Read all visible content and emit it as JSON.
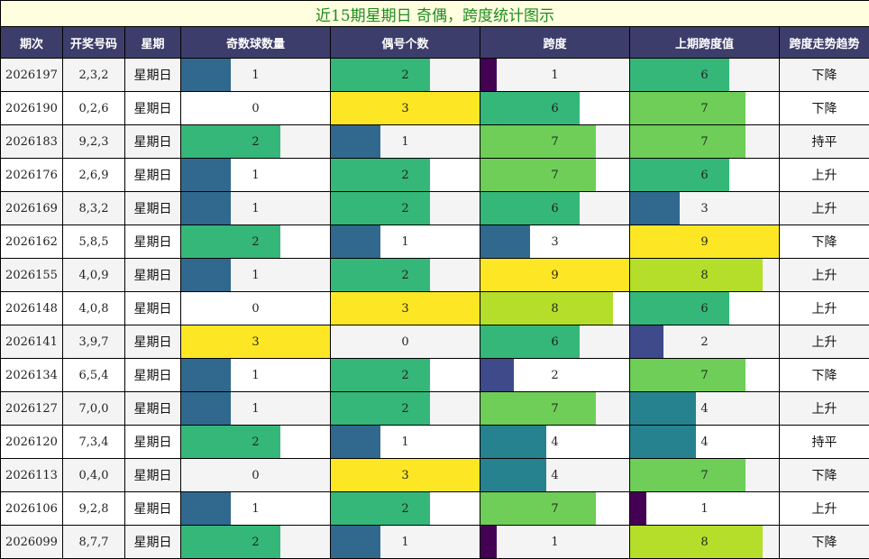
{
  "title": "近15期星期日 奇偶，跨度统计图示",
  "headers": [
    "期次",
    "开奖号码",
    "星期",
    "奇数球数量",
    "偶号个数",
    "跨度",
    "上期跨度值",
    "跨度走势趋势"
  ],
  "colors": {
    "c0": "#440154",
    "c1": "#482878",
    "c2": "#3e4a89",
    "c3": "#31688e",
    "c4": "#26828e",
    "c5": "#1f9e89",
    "c6": "#35b779",
    "c7": "#6ece58",
    "c8": "#b5de2b",
    "c9": "#fde725"
  },
  "chart_data": {
    "type": "table",
    "title": "近15期星期日 奇偶，跨度统计图示",
    "columns": [
      "期次",
      "开奖号码",
      "星期",
      "奇数球数量",
      "偶号个数",
      "跨度",
      "上期跨度值",
      "跨度走势趋势"
    ],
    "rows": [
      {
        "period": "2026197",
        "numbers": "2,3,2",
        "weekday": "星期日",
        "odd": 1,
        "even": 2,
        "span": 1,
        "prev_span": 6,
        "trend": "下降"
      },
      {
        "period": "2026190",
        "numbers": "0,2,6",
        "weekday": "星期日",
        "odd": 0,
        "even": 3,
        "span": 6,
        "prev_span": 7,
        "trend": "下降"
      },
      {
        "period": "2026183",
        "numbers": "9,2,3",
        "weekday": "星期日",
        "odd": 2,
        "even": 1,
        "span": 7,
        "prev_span": 7,
        "trend": "持平"
      },
      {
        "period": "2026176",
        "numbers": "2,6,9",
        "weekday": "星期日",
        "odd": 1,
        "even": 2,
        "span": 7,
        "prev_span": 6,
        "trend": "上升"
      },
      {
        "period": "2026169",
        "numbers": "8,3,2",
        "weekday": "星期日",
        "odd": 1,
        "even": 2,
        "span": 6,
        "prev_span": 3,
        "trend": "上升"
      },
      {
        "period": "2026162",
        "numbers": "5,8,5",
        "weekday": "星期日",
        "odd": 2,
        "even": 1,
        "span": 3,
        "prev_span": 9,
        "trend": "下降"
      },
      {
        "period": "2026155",
        "numbers": "4,0,9",
        "weekday": "星期日",
        "odd": 1,
        "even": 2,
        "span": 9,
        "prev_span": 8,
        "trend": "上升"
      },
      {
        "period": "2026148",
        "numbers": "4,0,8",
        "weekday": "星期日",
        "odd": 0,
        "even": 3,
        "span": 8,
        "prev_span": 6,
        "trend": "上升"
      },
      {
        "period": "2026141",
        "numbers": "3,9,7",
        "weekday": "星期日",
        "odd": 3,
        "even": 0,
        "span": 6,
        "prev_span": 2,
        "trend": "上升"
      },
      {
        "period": "2026134",
        "numbers": "6,5,4",
        "weekday": "星期日",
        "odd": 1,
        "even": 2,
        "span": 2,
        "prev_span": 7,
        "trend": "下降"
      },
      {
        "period": "2026127",
        "numbers": "7,0,0",
        "weekday": "星期日",
        "odd": 1,
        "even": 2,
        "span": 7,
        "prev_span": 4,
        "trend": "上升"
      },
      {
        "period": "2026120",
        "numbers": "7,3,4",
        "weekday": "星期日",
        "odd": 2,
        "even": 1,
        "span": 4,
        "prev_span": 4,
        "trend": "持平"
      },
      {
        "period": "2026113",
        "numbers": "0,4,0",
        "weekday": "星期日",
        "odd": 0,
        "even": 3,
        "span": 4,
        "prev_span": 7,
        "trend": "下降"
      },
      {
        "period": "2026106",
        "numbers": "9,2,8",
        "weekday": "星期日",
        "odd": 1,
        "even": 2,
        "span": 7,
        "prev_span": 1,
        "trend": "上升"
      },
      {
        "period": "2026099",
        "numbers": "8,7,7",
        "weekday": "星期日",
        "odd": 2,
        "even": 1,
        "span": 1,
        "prev_span": 8,
        "trend": "下降"
      }
    ],
    "odd_even_max": 3,
    "span_max": 9
  }
}
